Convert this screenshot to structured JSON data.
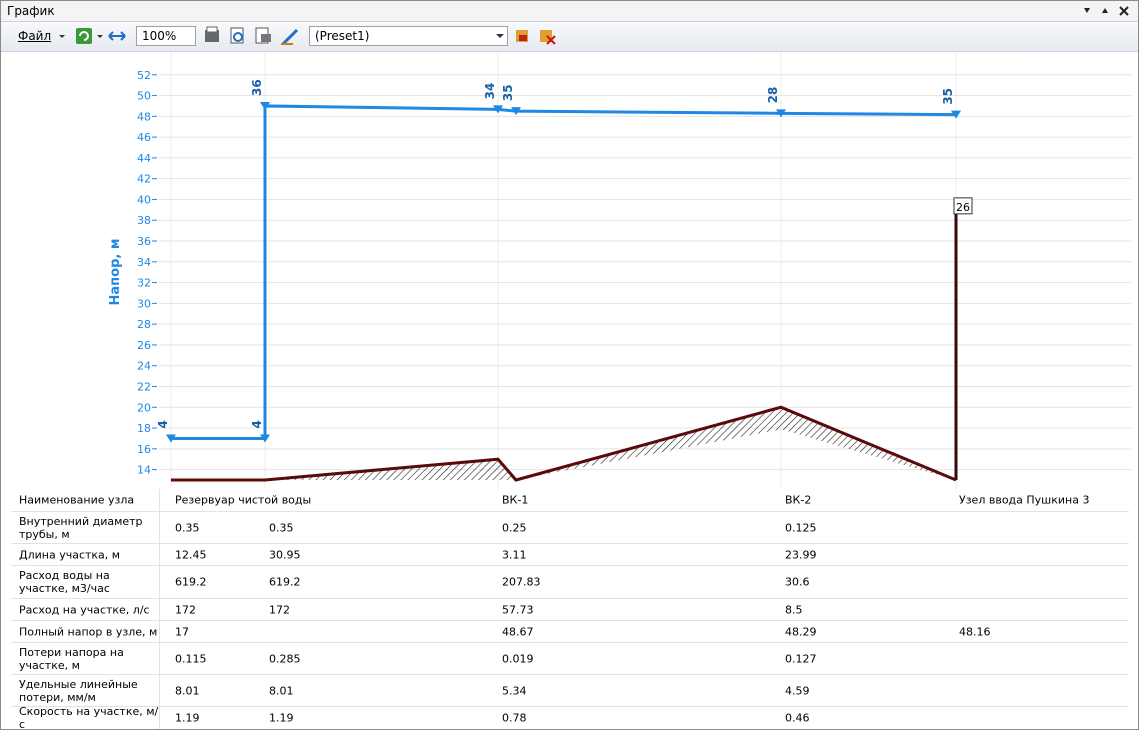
{
  "window": {
    "title": "График",
    "menu": "Файл",
    "zoom": "100%",
    "preset": "(Preset1)"
  },
  "chart_data": {
    "type": "line",
    "ylabel": "Напор, м",
    "ylim": [
      13,
      54
    ],
    "yticks": [
      14,
      16,
      18,
      20,
      22,
      24,
      26,
      28,
      30,
      32,
      34,
      36,
      38,
      40,
      42,
      44,
      46,
      48,
      50,
      52
    ],
    "grid": true,
    "series": [
      {
        "name": "head",
        "color": "#1e88e5",
        "values": [
          17,
          17,
          49,
          48.67,
          48.5,
          48.29,
          48.16
        ],
        "point_labels": [
          "4",
          "4",
          "36",
          "34",
          "35",
          "28",
          "35"
        ]
      },
      {
        "name": "ground",
        "color": "#5a0a0a",
        "values": [
          13,
          13,
          15,
          13,
          20,
          13
        ]
      },
      {
        "name": "riser",
        "color": "#3a0a0a",
        "values": [
          13,
          39
        ],
        "label": "26"
      }
    ]
  },
  "table": {
    "rows": [
      {
        "label": "Наименование узла",
        "cells": [
          "Резервуар чистой воды",
          null,
          "ВК-1",
          "ВК-2",
          "Узел ввода Пушкина 3"
        ]
      },
      {
        "label": "Внутренний диаметр трубы, м",
        "cells": [
          0.35,
          0.35,
          0.25,
          0.125,
          null
        ]
      },
      {
        "label": "Длина участка, м",
        "cells": [
          12.45,
          30.95,
          3.11,
          23.99,
          null
        ]
      },
      {
        "label": "Расход воды на участке, м3/час",
        "cells": [
          619.2,
          619.2,
          207.83,
          30.6,
          null
        ]
      },
      {
        "label": "Расход на участке, л/с",
        "cells": [
          172,
          172,
          57.73,
          8.5,
          null
        ]
      },
      {
        "label": "Полный напор в узле, м",
        "cells": [
          17,
          null,
          48.67,
          48.29,
          48.16
        ]
      },
      {
        "label": "Потери напора на участке, м",
        "cells": [
          0.115,
          0.285,
          0.019,
          0.127,
          null
        ]
      },
      {
        "label": "Удельные линейные потери, мм/м",
        "cells": [
          8.01,
          8.01,
          5.34,
          4.59,
          null
        ]
      },
      {
        "label": "Скорость на участке, м/с",
        "cells": [
          1.19,
          1.19,
          0.78,
          0.46,
          null
        ]
      }
    ]
  }
}
